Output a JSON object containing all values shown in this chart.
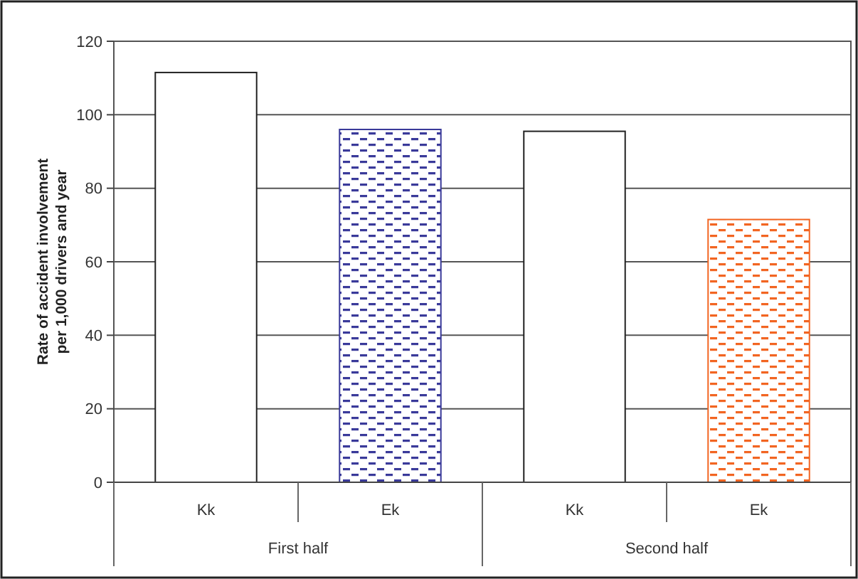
{
  "chart_data": {
    "type": "bar",
    "ylabel": "Rate of accident involvement per 1,000 drivers and year",
    "categories": [
      "Kk",
      "Ek",
      "Kk",
      "Ek"
    ],
    "values": [
      111.5,
      96,
      95.5,
      71.5
    ],
    "colors": [
      "#ffffff",
      "#3a3a9a",
      "#ffffff",
      "#f26522"
    ],
    "ylim": [
      0,
      120
    ],
    "yticks": [
      0,
      20,
      40,
      60,
      80,
      100,
      120
    ],
    "grid": "y",
    "annotations": [
      "First half",
      "Second half"
    ]
  }
}
